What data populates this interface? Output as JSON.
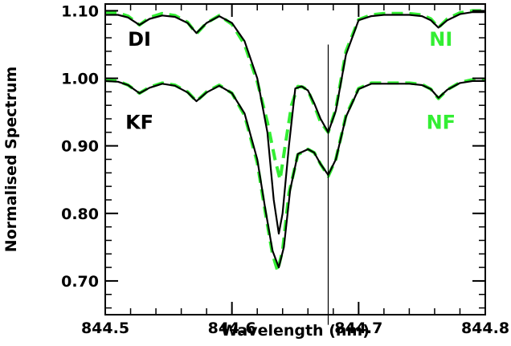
{
  "chart_data": {
    "type": "line",
    "xlabel": "Wavelength (nm)",
    "ylabel": "Normalised Spectrum",
    "xlim": [
      844.5,
      844.8
    ],
    "ylim": [
      0.65,
      1.11
    ],
    "xticks": [
      "844.5",
      "844.6",
      "844.7",
      "844.8"
    ],
    "xtick_values": [
      844.5,
      844.6,
      844.7,
      844.8
    ],
    "yticks": [
      "0.70",
      "0.80",
      "0.90",
      "1.00",
      "1.10"
    ],
    "ytick_values": [
      0.7,
      0.8,
      0.9,
      1.0,
      1.1
    ],
    "grid": false,
    "colors": {
      "solid": "#000000",
      "dashed": "#33ee33"
    },
    "annotations": [
      {
        "text": "DI",
        "x": 844.527,
        "y": 1.048,
        "color": "#000000"
      },
      {
        "text": "NI",
        "x": 844.765,
        "y": 1.048,
        "color": "#33ee33"
      },
      {
        "text": "KF",
        "x": 844.527,
        "y": 0.925,
        "color": "#000000"
      },
      {
        "text": "NF",
        "x": 844.765,
        "y": 0.925,
        "color": "#33ee33"
      }
    ],
    "vertical_line": {
      "x": 844.676,
      "y_from": 0.635,
      "y_to": 1.05
    },
    "series": [
      {
        "style": "dashed",
        "x": [
          844.5,
          844.51,
          844.518,
          844.527,
          844.535,
          844.545,
          844.555,
          844.565,
          844.572,
          844.58,
          844.59,
          844.6,
          844.61,
          844.62,
          844.628,
          844.634,
          844.638,
          844.642,
          844.647,
          844.652,
          844.656,
          844.66,
          844.665,
          844.67,
          844.676,
          844.682,
          844.69,
          844.7,
          844.71,
          844.72,
          844.73,
          844.74,
          844.75,
          844.757,
          844.763,
          844.77,
          844.78,
          844.79,
          844.8
        ],
        "y": [
          1.098,
          1.097,
          1.092,
          1.079,
          1.09,
          1.096,
          1.093,
          1.083,
          1.066,
          1.082,
          1.093,
          1.08,
          1.05,
          0.995,
          0.935,
          0.88,
          0.85,
          0.9,
          0.96,
          0.988,
          0.987,
          0.982,
          0.96,
          0.935,
          0.92,
          0.955,
          1.04,
          1.087,
          1.094,
          1.096,
          1.096,
          1.096,
          1.094,
          1.088,
          1.075,
          1.088,
          1.097,
          1.1,
          1.1
        ]
      },
      {
        "style": "solid",
        "x": [
          844.5,
          844.51,
          844.518,
          844.527,
          844.535,
          844.545,
          844.555,
          844.565,
          844.572,
          844.58,
          844.59,
          844.6,
          844.61,
          844.62,
          844.628,
          844.633,
          844.637,
          844.64,
          844.645,
          844.65,
          844.655,
          844.66,
          844.665,
          844.67,
          844.676,
          844.682,
          844.69,
          844.7,
          844.71,
          844.72,
          844.73,
          844.74,
          844.75,
          844.757,
          844.763,
          844.77,
          844.78,
          844.79,
          844.8
        ],
        "y": [
          1.094,
          1.094,
          1.09,
          1.079,
          1.088,
          1.093,
          1.091,
          1.082,
          1.067,
          1.082,
          1.092,
          1.082,
          1.055,
          1.0,
          0.92,
          0.82,
          0.77,
          0.8,
          0.9,
          0.985,
          0.988,
          0.982,
          0.963,
          0.94,
          0.92,
          0.952,
          1.035,
          1.086,
          1.092,
          1.094,
          1.094,
          1.094,
          1.092,
          1.086,
          1.075,
          1.086,
          1.095,
          1.098,
          1.098
        ]
      },
      {
        "style": "dashed",
        "x": [
          844.5,
          844.51,
          844.518,
          844.527,
          844.535,
          844.545,
          844.555,
          844.565,
          844.572,
          844.58,
          844.59,
          844.6,
          844.61,
          844.62,
          844.626,
          844.632,
          844.636,
          844.64,
          844.645,
          844.652,
          844.66,
          844.665,
          844.67,
          844.676,
          844.682,
          844.69,
          844.7,
          844.71,
          844.72,
          844.73,
          844.74,
          844.75,
          844.757,
          844.763,
          844.77,
          844.78,
          844.79,
          844.8
        ],
        "y": [
          0.997,
          0.996,
          0.99,
          0.978,
          0.987,
          0.993,
          0.99,
          0.98,
          0.966,
          0.98,
          0.99,
          0.978,
          0.945,
          0.875,
          0.805,
          0.74,
          0.715,
          0.745,
          0.83,
          0.887,
          0.895,
          0.89,
          0.873,
          0.855,
          0.88,
          0.945,
          0.985,
          0.993,
          0.993,
          0.993,
          0.993,
          0.991,
          0.984,
          0.97,
          0.983,
          0.994,
          0.998,
          0.998
        ]
      },
      {
        "style": "solid",
        "x": [
          844.5,
          844.51,
          844.518,
          844.527,
          844.535,
          844.545,
          844.555,
          844.565,
          844.572,
          844.58,
          844.59,
          844.6,
          844.61,
          844.62,
          844.626,
          844.632,
          844.637,
          844.641,
          844.646,
          844.652,
          844.66,
          844.665,
          844.67,
          844.676,
          844.682,
          844.69,
          844.7,
          844.71,
          844.72,
          844.73,
          844.74,
          844.75,
          844.757,
          844.763,
          844.77,
          844.78,
          844.79,
          844.8
        ],
        "y": [
          0.996,
          0.995,
          0.99,
          0.978,
          0.986,
          0.992,
          0.989,
          0.979,
          0.966,
          0.979,
          0.989,
          0.978,
          0.948,
          0.88,
          0.81,
          0.745,
          0.72,
          0.75,
          0.835,
          0.888,
          0.895,
          0.89,
          0.873,
          0.857,
          0.88,
          0.943,
          0.984,
          0.992,
          0.992,
          0.992,
          0.992,
          0.99,
          0.984,
          0.971,
          0.983,
          0.993,
          0.996,
          0.996
        ]
      }
    ]
  }
}
